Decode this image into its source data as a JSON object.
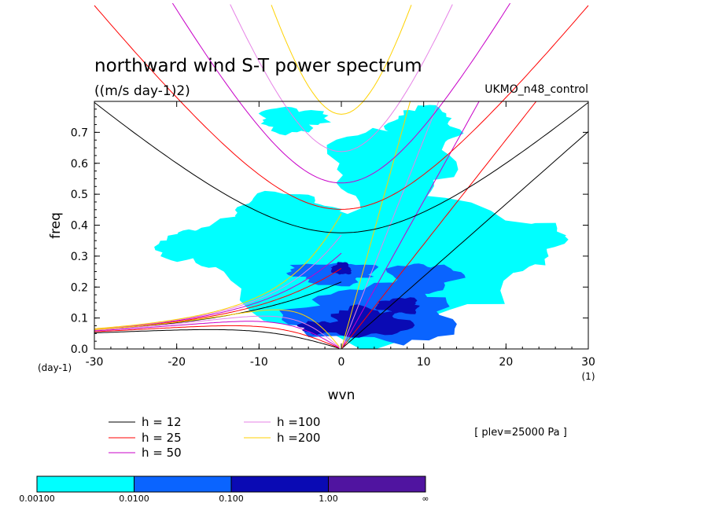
{
  "chart_data": {
    "type": "heatmap",
    "title": "northward wind S-T power spectrum",
    "units": "((m/s day-1)2)",
    "dataset": "UKMO_n48_control",
    "level_note": "[ plev=25000 Pa ]",
    "xlabel": "wvn",
    "ylabel": "freq",
    "x_unit_label": "(1)",
    "y_unit_label": "(day-1)",
    "xlim": [
      -30,
      30
    ],
    "ylim": [
      0,
      0.8
    ],
    "x_ticks": [
      -30,
      -20,
      -10,
      0,
      10,
      20,
      30
    ],
    "x_tick_labels": [
      "-30",
      "-20",
      "-10",
      "0",
      "10",
      "20",
      "30"
    ],
    "y_ticks": [
      0.0,
      0.1,
      0.2,
      0.3,
      0.4,
      0.5,
      0.6,
      0.7
    ],
    "y_tick_labels": [
      "0.0",
      "0.1",
      "0.2",
      "0.3",
      "0.4",
      "0.5",
      "0.6",
      "0.7"
    ],
    "contour_levels": [
      0.001,
      0.01,
      0.1,
      1.0
    ],
    "colorbar": {
      "colors": [
        "#00ffff",
        "#0a64ff",
        "#0a0ab4",
        "#5014a0"
      ],
      "labels": [
        "0.00100",
        "0.0100",
        "0.100",
        "1.00",
        "∞"
      ]
    },
    "regions": [
      {
        "level": 0,
        "cx": 3,
        "cy": 0.28,
        "rx": 20,
        "ry": 0.22
      },
      {
        "level": 0,
        "cx": 6,
        "cy": 0.58,
        "rx": 7,
        "ry": 0.14
      },
      {
        "level": 0,
        "cx": -6,
        "cy": 0.74,
        "rx": 4,
        "ry": 0.04
      },
      {
        "level": 0,
        "cx": 10,
        "cy": 0.72,
        "rx": 4,
        "ry": 0.06
      },
      {
        "level": 0,
        "cx": -17,
        "cy": 0.33,
        "rx": 5,
        "ry": 0.06
      },
      {
        "level": 0,
        "cx": 21,
        "cy": 0.34,
        "rx": 6,
        "ry": 0.08
      },
      {
        "level": 0,
        "cx": -7,
        "cy": 0.44,
        "rx": 6,
        "ry": 0.06
      },
      {
        "level": 1,
        "cx": 4,
        "cy": 0.11,
        "rx": 10,
        "ry": 0.09
      },
      {
        "level": 1,
        "cx": -1,
        "cy": 0.245,
        "rx": 5,
        "ry": 0.035
      },
      {
        "level": 1,
        "cx": 10,
        "cy": 0.23,
        "rx": 4,
        "ry": 0.05
      },
      {
        "level": 2,
        "cx": 3,
        "cy": 0.085,
        "rx": 5,
        "ry": 0.045
      },
      {
        "level": 2,
        "cx": 7,
        "cy": 0.14,
        "rx": 2.5,
        "ry": 0.025
      },
      {
        "level": 2,
        "cx": 0,
        "cy": 0.26,
        "rx": 1.2,
        "ry": 0.02
      },
      {
        "level": 2,
        "cx": -3,
        "cy": 0.07,
        "rx": 2,
        "ry": 0.02
      }
    ],
    "dispersion_curves": [
      {
        "name": "h = 12",
        "h": 12,
        "color": "#000000"
      },
      {
        "name": "h = 25",
        "h": 25,
        "color": "#ff0000"
      },
      {
        "name": "h = 50",
        "h": 50,
        "color": "#c800c8"
      },
      {
        "name": "h =100",
        "h": 100,
        "color": "#e682e6"
      },
      {
        "name": "h =200",
        "h": 200,
        "color": "#ffd200"
      }
    ]
  }
}
